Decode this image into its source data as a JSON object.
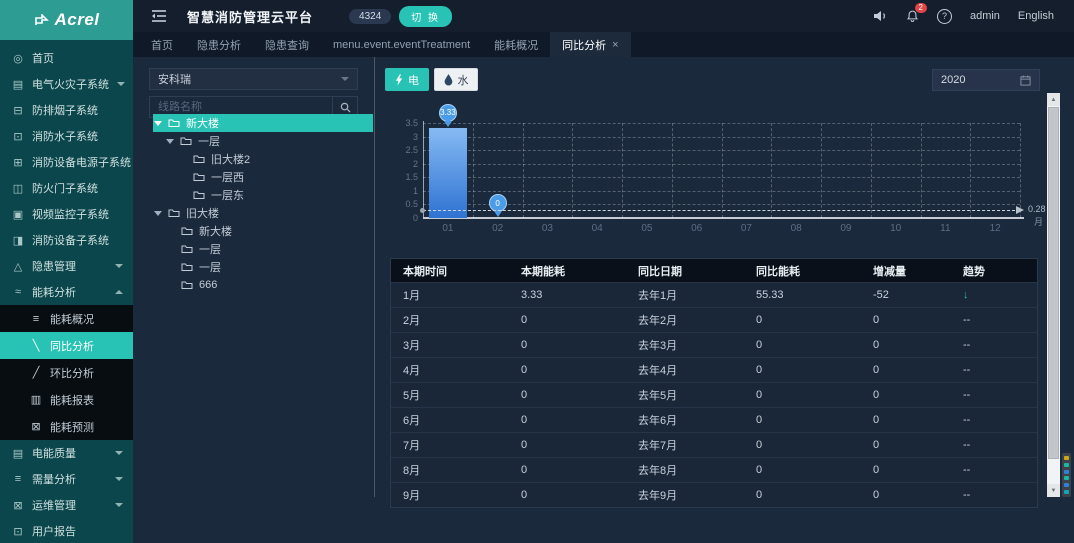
{
  "header": {
    "logo": "Acrel",
    "title": "智慧消防管理云平台",
    "badge": "4324",
    "switch_label": "切 换",
    "bell_count": "2",
    "help": "?",
    "user": "admin",
    "language": "English"
  },
  "tabs": [
    {
      "label": "首页"
    },
    {
      "label": "隐患分析"
    },
    {
      "label": "隐患查询"
    },
    {
      "label": "menu.event.eventTreatment"
    },
    {
      "label": "能耗概况"
    },
    {
      "label": "同比分析",
      "active": true,
      "close": "×"
    }
  ],
  "sidebar": {
    "items": [
      {
        "label": "首页"
      },
      {
        "label": "电气火灾子系统",
        "chevron": "down"
      },
      {
        "label": "防排烟子系统"
      },
      {
        "label": "消防水子系统"
      },
      {
        "label": "消防设备电源子系统"
      },
      {
        "label": "防火门子系统"
      },
      {
        "label": "视频监控子系统"
      },
      {
        "label": "消防设备子系统"
      },
      {
        "label": "隐患管理",
        "chevron": "down"
      },
      {
        "label": "能耗分析",
        "chevron": "up",
        "expanded": true,
        "children": [
          {
            "label": "能耗概况"
          },
          {
            "label": "同比分析",
            "active": true
          },
          {
            "label": "环比分析"
          },
          {
            "label": "能耗报表"
          },
          {
            "label": "能耗预测"
          }
        ]
      },
      {
        "label": "电能质量",
        "chevron": "down"
      },
      {
        "label": "需量分析",
        "chevron": "down"
      },
      {
        "label": "运维管理",
        "chevron": "down"
      },
      {
        "label": "用户报告"
      }
    ]
  },
  "tree_panel": {
    "org_selected": "安科瑞",
    "search_placeholder": "线路名称",
    "nodes": [
      {
        "label": "新大楼",
        "level": 0,
        "caret": true,
        "selected": true
      },
      {
        "label": "一层",
        "level": 1,
        "caret": true
      },
      {
        "label": "旧大楼2",
        "level": 2
      },
      {
        "label": "一层西",
        "level": 2
      },
      {
        "label": "一层东",
        "level": 2
      },
      {
        "label": "旧大楼",
        "level": 0,
        "caret": true
      },
      {
        "label": "新大楼",
        "level": 1
      },
      {
        "label": "一层",
        "level": 1
      },
      {
        "label": "一层",
        "level": 1
      },
      {
        "label": "666",
        "level": 1
      }
    ]
  },
  "toolbar": {
    "electric": "电",
    "water": "水",
    "year": "2020"
  },
  "chart_data": {
    "type": "bar",
    "title": "",
    "categories": [
      "01",
      "02",
      "03",
      "04",
      "05",
      "06",
      "07",
      "08",
      "09",
      "10",
      "11",
      "12"
    ],
    "values": [
      3.33,
      0,
      null,
      null,
      null,
      null,
      null,
      null,
      null,
      null,
      null,
      null
    ],
    "labeled_points": [
      {
        "x": "01",
        "value": "3.33",
        "value_num": 3.33
      },
      {
        "x": "02",
        "value": "0",
        "value_num": 0
      }
    ],
    "yticks": [
      0,
      0.5,
      1,
      1.5,
      2,
      2.5,
      3,
      3.5
    ],
    "ylim": [
      0,
      3.5
    ],
    "average_line": 0.28,
    "average_label": "0.28",
    "x_unit": "月",
    "xlabel": "月",
    "ylabel": "",
    "grid": "dashed",
    "bar_color": "#3e86dd"
  },
  "table": {
    "columns": [
      "本期时间",
      "本期能耗",
      "同比日期",
      "同比能耗",
      "增减量",
      "趋势"
    ],
    "rows": [
      [
        "1月",
        "3.33",
        "去年1月",
        "55.33",
        "-52",
        "↓"
      ],
      [
        "2月",
        "0",
        "去年2月",
        "0",
        "0",
        "--"
      ],
      [
        "3月",
        "0",
        "去年3月",
        "0",
        "0",
        "--"
      ],
      [
        "4月",
        "0",
        "去年4月",
        "0",
        "0",
        "--"
      ],
      [
        "5月",
        "0",
        "去年5月",
        "0",
        "0",
        "--"
      ],
      [
        "6月",
        "0",
        "去年6月",
        "0",
        "0",
        "--"
      ],
      [
        "7月",
        "0",
        "去年7月",
        "0",
        "0",
        "--"
      ],
      [
        "8月",
        "0",
        "去年8月",
        "0",
        "0",
        "--"
      ],
      [
        "9月",
        "0",
        "去年9月",
        "0",
        "0",
        "--"
      ]
    ]
  },
  "colors": {
    "accent_teal": "#29c3b5",
    "bar_blue": "#3e86dd",
    "trend_down_green": "#35b98c",
    "badge_red": "#e04545",
    "sidebar_teal": "#0b464c"
  }
}
